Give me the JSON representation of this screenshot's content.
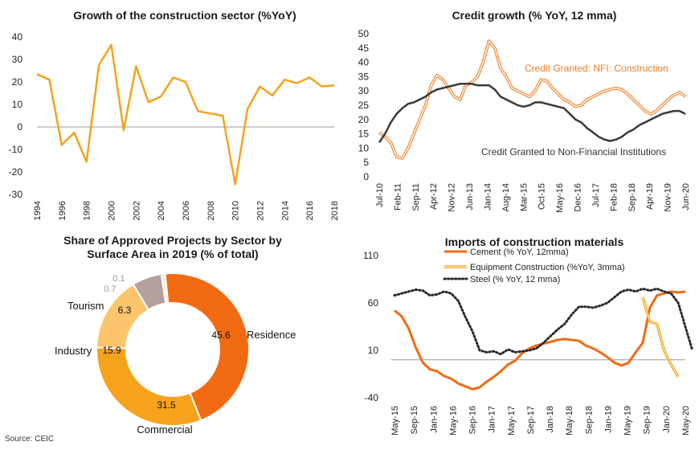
{
  "source": "Source: CEIC",
  "charts": {
    "growth": {
      "title": "Growth of the construction sector (%YoY)",
      "chart_data": {
        "type": "line",
        "title": "Growth of the construction sector (%YoY)",
        "x": [
          1994,
          1995,
          1996,
          1997,
          1998,
          1999,
          2000,
          2001,
          2002,
          2003,
          2004,
          2005,
          2006,
          2007,
          2008,
          2009,
          2010,
          2011,
          2012,
          2013,
          2014,
          2015,
          2016,
          2017,
          2018
        ],
        "series": [
          {
            "values": [
              23.5,
              21,
              -8,
              -2.5,
              -15.5,
              27.5,
              36.5,
              -1.5,
              27,
              11,
              13.5,
              22,
              20,
              7,
              6,
              5,
              -25.5,
              8,
              18,
              14,
              21,
              19.5,
              22,
              18,
              18.5
            ],
            "color": "#f5a21d"
          }
        ],
        "xticks": [
          "1994",
          "1996",
          "1998",
          "2000",
          "2002",
          "2004",
          "2006",
          "2008",
          "2010",
          "2012",
          "2014",
          "2016",
          "2018"
        ],
        "yticks": [
          "40",
          "30",
          "20",
          "10",
          "0",
          "-10",
          "-20",
          "-30"
        ],
        "ylim": [
          -30,
          40
        ]
      }
    },
    "credit": {
      "title": "Credit growth (% YoY, 12 mma)",
      "chart_data": {
        "type": "line",
        "title": "Credit growth (% YoY, 12 mma)",
        "xticks": [
          "Jul-10",
          "Feb-11",
          "Sep-11",
          "Apr-12",
          "Nov-12",
          "Jun-13",
          "Jan-14",
          "Aug-14",
          "Mar-15",
          "Oct-15",
          "May-16",
          "Dec-16",
          "Jul-17",
          "Feb-18",
          "Sep-18",
          "Apr-19",
          "Nov-19",
          "Jun-20"
        ],
        "yticks": [
          "50",
          "45",
          "40",
          "35",
          "30",
          "25",
          "20",
          "15",
          "10",
          "5",
          "0"
        ],
        "ylim": [
          0,
          50
        ],
        "series": [
          {
            "name": "Credit Granted: NFI: Construction",
            "color": "#f07d22",
            "values": [
              15.5,
              14,
              12,
              7,
              6.5,
              10,
              15,
              20,
              25,
              32,
              35.5,
              34,
              31,
              28,
              27,
              32,
              33,
              35,
              40,
              47.5,
              45,
              38,
              35,
              31,
              30,
              29,
              28,
              30,
              34,
              33.5,
              31,
              29,
              27,
              26,
              24.5,
              25,
              27,
              28,
              29,
              30,
              30.5,
              31,
              30.5,
              29,
              27,
              25,
              23,
              22,
              23,
              25,
              27,
              28.5,
              29.5,
              28
            ]
          },
          {
            "name": "Credit Granted to Non-Financial Institutions",
            "color": "#3a3a3a",
            "values": [
              12,
              15,
              19,
              22,
              24,
              25.5,
              26,
              27,
              28,
              29.5,
              30.5,
              31,
              31.5,
              32,
              32.5,
              32.5,
              32.5,
              32,
              32,
              32,
              30.5,
              28,
              27,
              26,
              25,
              24.5,
              25,
              26,
              26,
              25.5,
              25,
              24.5,
              24,
              22,
              20,
              19,
              17,
              15.5,
              14,
              13,
              12.5,
              13,
              14,
              15.5,
              16.5,
              18,
              19,
              20,
              21,
              22,
              22.5,
              23,
              23,
              22
            ]
          }
        ]
      }
    },
    "share": {
      "title": "Share of Approved Projects by Sector by Surface Area in 2019 (% of total)",
      "title_line1": "Share of Approved Projects by Sector by",
      "title_line2": "Surface Area in 2019 (% of total)",
      "chart_data": {
        "type": "pie",
        "title": "Share of Approved Projects by Sector by Surface Area in 2019 (% of total)",
        "slices": [
          {
            "label": "Residence",
            "value": 45.6,
            "color": "#f26a12"
          },
          {
            "label": "Commercial",
            "value": 31.5,
            "color": "#f7a21b"
          },
          {
            "label": "Industry",
            "value": 15.9,
            "color": "#fcc56b"
          },
          {
            "label": "Tourism",
            "value": 6.3,
            "color": "#b4a09c"
          },
          {
            "label": "",
            "value": 0.7,
            "color": "#fde8c8"
          },
          {
            "label": "",
            "value": 0.1,
            "color": "#bfbfbf"
          }
        ],
        "value_labels": [
          "45.6",
          "31.5",
          "15.9",
          "6.3",
          "0.7",
          "0.1"
        ]
      }
    },
    "imports": {
      "title": "Imports of construction materials",
      "chart_data": {
        "type": "line",
        "title": "Imports of construction materials",
        "xticks": [
          "May-15",
          "Sep-15",
          "Jan-16",
          "May-16",
          "Sep-16",
          "Jan-17",
          "May-17",
          "Sep-17",
          "Jan-18",
          "May-18",
          "Sep-18",
          "Jan-19",
          "May-19",
          "Sep-19",
          "Jan-20",
          "May-20"
        ],
        "yticks": [
          "110",
          "60",
          "10",
          "-40"
        ],
        "ylim": [
          -40,
          110
        ],
        "series": [
          {
            "name": "Cement (% YoY, 12mma)",
            "color": "#f26a12",
            "style": "solid",
            "values": [
              52,
              46,
              33,
              13,
              -3,
              -10,
              -12,
              -17,
              -20,
              -25,
              -28,
              -31,
              -29,
              -23,
              -18,
              -12,
              -5,
              -1,
              7,
              12,
              15,
              17,
              19,
              21,
              22,
              21,
              20,
              15,
              12,
              8,
              3,
              -3,
              -6,
              -3,
              8,
              18,
              55,
              68,
              70,
              72,
              71,
              72
            ]
          },
          {
            "name": "Equipment Construction (%YoY, 3mma)",
            "color": "#fcc56b",
            "style": "solid",
            "values": [
              null,
              null,
              null,
              null,
              null,
              null,
              null,
              null,
              null,
              null,
              null,
              null,
              null,
              null,
              null,
              null,
              null,
              null,
              null,
              null,
              null,
              null,
              null,
              null,
              null,
              null,
              null,
              null,
              null,
              null,
              null,
              null,
              null,
              null,
              null,
              66,
              40,
              38,
              10,
              -5,
              -18
            ]
          },
          {
            "name": "Steel (% YoY, 12 mma)",
            "color": "#2a2a2a",
            "style": "dotted",
            "values": [
              68,
              70,
              72,
              74,
              73,
              68,
              69,
              72,
              70,
              62,
              45,
              30,
              10,
              8,
              9,
              6,
              11,
              8,
              9,
              10,
              12,
              18,
              25,
              32,
              38,
              48,
              56,
              56,
              55,
              57,
              60,
              66,
              72,
              74,
              72,
              75,
              73,
              75,
              72,
              70,
              60,
              35,
              10
            ]
          }
        ]
      }
    }
  }
}
